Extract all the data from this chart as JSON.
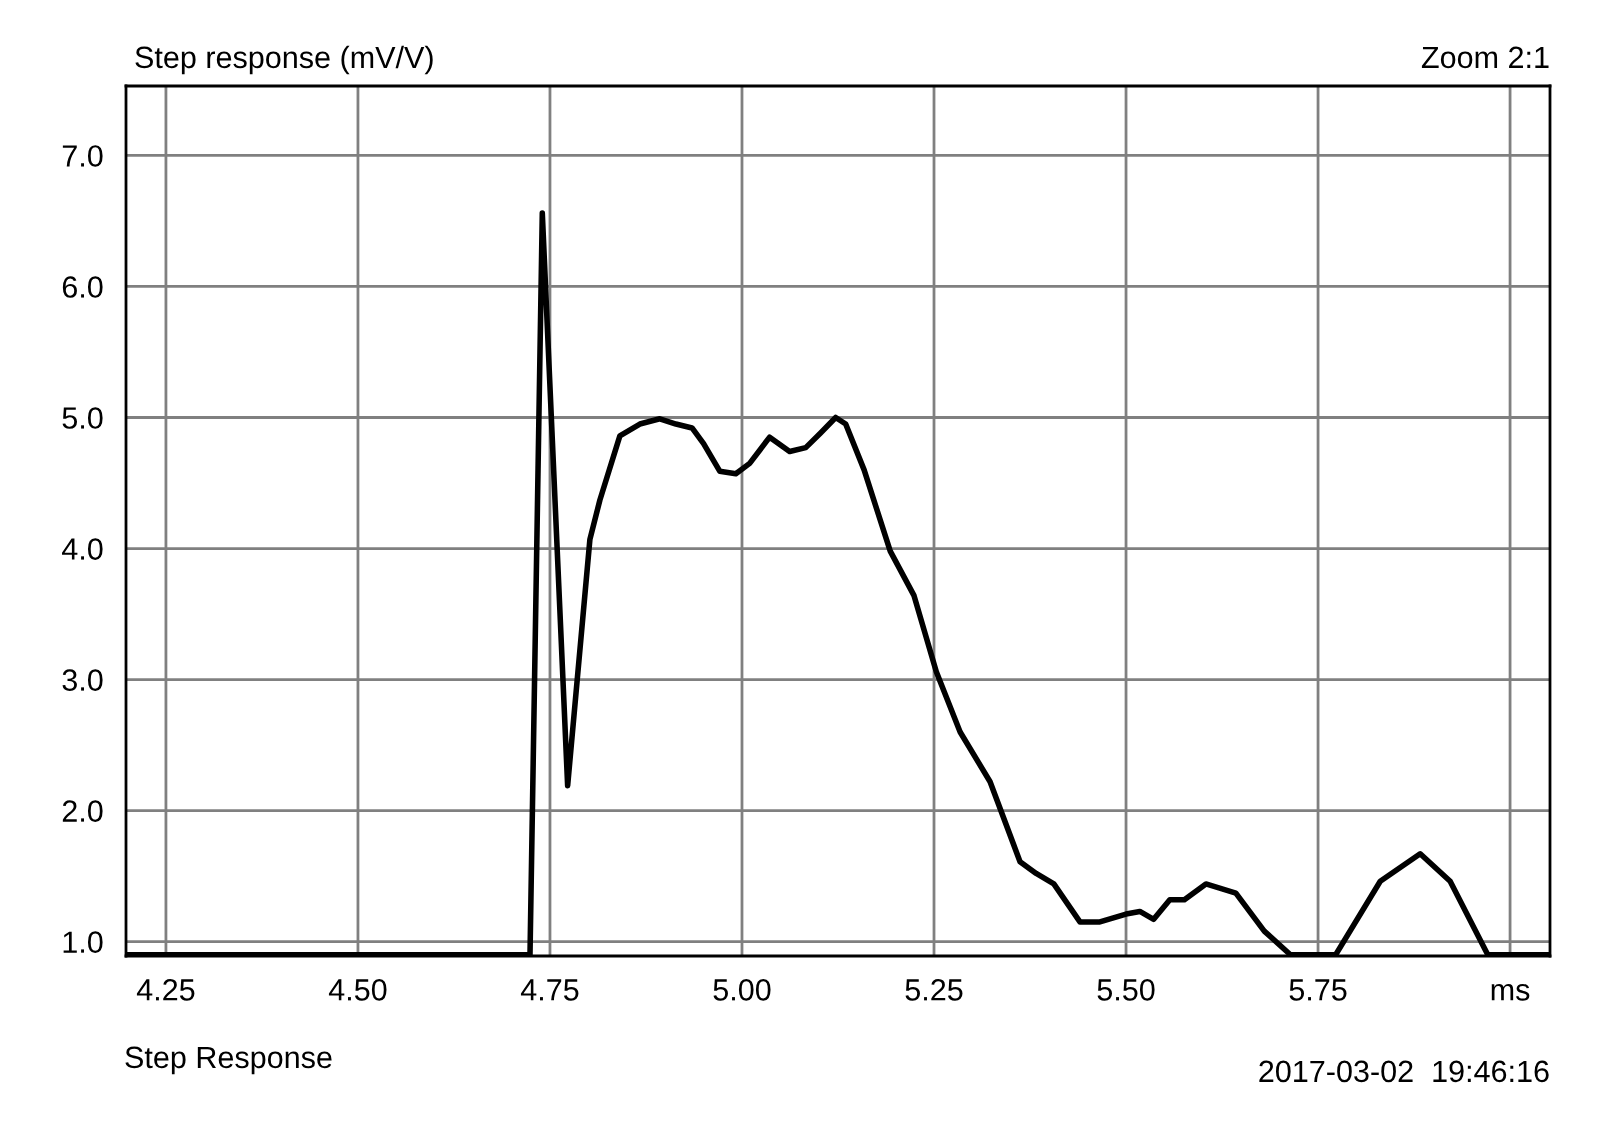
{
  "chart_data": {
    "type": "line",
    "title": "Step response (mV/V)",
    "annotations": [
      "Zoom 2:1",
      "Step Response",
      "2017-03-02  19:46:16"
    ],
    "x": [
      4.198,
      4.724,
      4.74,
      4.773,
      4.802,
      4.815,
      4.841,
      4.867,
      4.893,
      4.914,
      4.935,
      4.95,
      4.971,
      4.992,
      5.01,
      5.036,
      5.062,
      5.083,
      5.102,
      5.122,
      5.135,
      5.159,
      5.193,
      5.224,
      5.253,
      5.284,
      5.323,
      5.362,
      5.383,
      5.406,
      5.44,
      5.466,
      5.5,
      5.518,
      5.536,
      5.557,
      5.576,
      5.604,
      5.643,
      5.68,
      5.714,
      5.773,
      5.831,
      5.883,
      5.922,
      5.971,
      6.05
    ],
    "series": [
      {
        "color": "#000000",
        "values": [
          0.9,
          0.9,
          6.56,
          2.19,
          4.07,
          4.37,
          4.86,
          4.95,
          4.99,
          4.95,
          4.92,
          4.8,
          4.59,
          4.57,
          4.65,
          4.85,
          4.74,
          4.77,
          4.88,
          5.0,
          4.95,
          4.6,
          3.98,
          3.64,
          3.06,
          2.6,
          2.22,
          1.61,
          1.52,
          1.44,
          1.15,
          1.15,
          1.21,
          1.23,
          1.17,
          1.32,
          1.32,
          1.44,
          1.37,
          1.08,
          0.9,
          0.9,
          1.46,
          1.67,
          1.46,
          0.9,
          0.9
        ]
      }
    ],
    "xlim": [
      4.198,
      6.052
    ],
    "ylim": [
      0.89,
      7.53
    ],
    "xticks": [
      4.25,
      {
        "value": 4.5,
        "label": "4.50"
      },
      4.75,
      {
        "value": 5.0,
        "label": "5.00"
      },
      5.25,
      {
        "value": 5.5,
        "label": "5.50"
      },
      5.75,
      {
        "value": 6.0,
        "label": "ms"
      }
    ],
    "yticks": [
      {
        "value": 1.0,
        "label": "1.0"
      },
      {
        "value": 2.0,
        "label": "2.0"
      },
      {
        "value": 3.0,
        "label": "3.0"
      },
      {
        "value": 4.0,
        "label": "4.0"
      },
      {
        "value": 5.0,
        "label": "5.0"
      },
      {
        "value": 6.0,
        "label": "6.0"
      },
      {
        "value": 7.0,
        "label": "7.0"
      }
    ],
    "grid": true,
    "line_style": "solid"
  }
}
